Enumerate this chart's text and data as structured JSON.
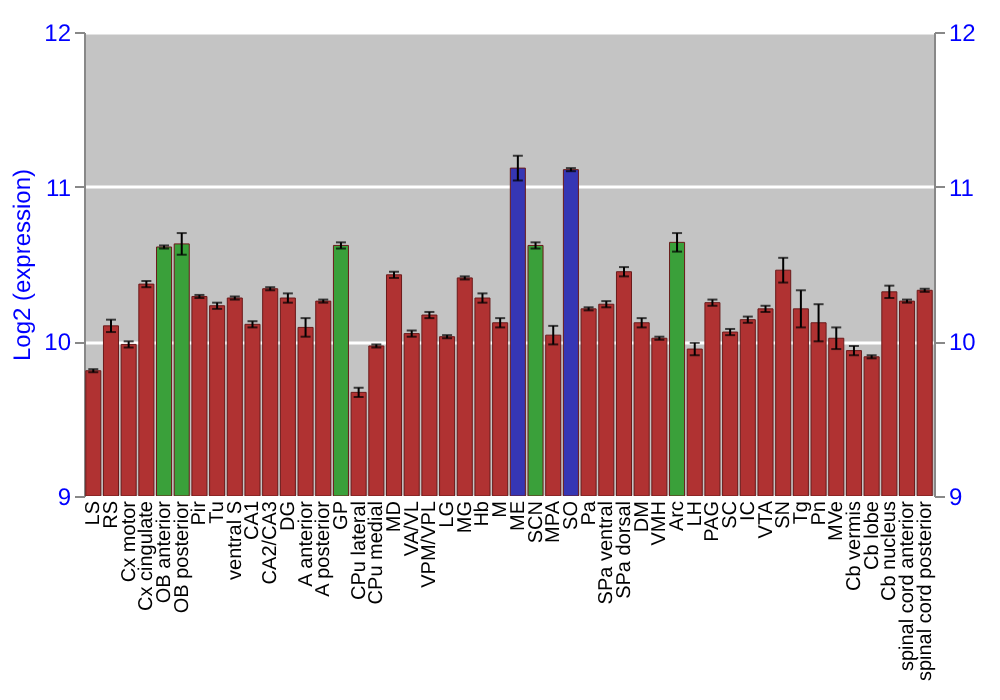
{
  "chart_data": {
    "type": "bar",
    "ylabel": "Log2 (expression)",
    "categories": [
      "LS",
      "RS",
      "Cx motor",
      "Cx cingulate",
      "OB anterior",
      "OB posterior",
      "Pir",
      "Tu",
      "ventral S",
      "CA1",
      "CA2/CA3",
      "DG",
      "A anterior",
      "A posterior",
      "GP",
      "CPu lateral",
      "CPu medial",
      "MD",
      "VA/VL",
      "VPM/VPL",
      "LG",
      "MG",
      "Hb",
      "M",
      "ME",
      "SCN",
      "MPA",
      "SO",
      "Pa",
      "SPa ventral",
      "SPa dorsal",
      "DM",
      "VMH",
      "Arc",
      "LH",
      "PAG",
      "SC",
      "IC",
      "VTA",
      "SN",
      "Tg",
      "Pn",
      "MVe",
      "Cb vermis",
      "Cb lobe",
      "Cb nucleus",
      "spinal cord anterior",
      "spinal cord posterior"
    ],
    "values": [
      9.81,
      10.1,
      9.98,
      10.37,
      10.61,
      10.63,
      10.29,
      10.23,
      10.28,
      10.11,
      10.34,
      10.28,
      10.09,
      10.26,
      10.62,
      9.67,
      9.97,
      10.43,
      10.05,
      10.17,
      10.03,
      10.41,
      10.28,
      10.12,
      11.12,
      10.62,
      10.04,
      11.11,
      10.21,
      10.24,
      10.45,
      10.12,
      10.02,
      10.64,
      9.95,
      10.25,
      10.06,
      10.14,
      10.21,
      10.46,
      10.21,
      10.12,
      10.02,
      9.94,
      9.9,
      10.32,
      10.26,
      10.33
    ],
    "errors": [
      0.01,
      0.04,
      0.02,
      0.02,
      0.01,
      0.07,
      0.01,
      0.02,
      0.01,
      0.02,
      0.01,
      0.03,
      0.06,
      0.01,
      0.02,
      0.03,
      0.01,
      0.02,
      0.02,
      0.02,
      0.01,
      0.01,
      0.03,
      0.03,
      0.08,
      0.02,
      0.06,
      0.01,
      0.01,
      0.02,
      0.03,
      0.03,
      0.01,
      0.06,
      0.04,
      0.02,
      0.02,
      0.02,
      0.02,
      0.08,
      0.12,
      0.12,
      0.07,
      0.03,
      0.01,
      0.04,
      0.01,
      0.01
    ],
    "colors": [
      "#b03232",
      "#b03232",
      "#b03232",
      "#b03232",
      "#3aa03a",
      "#3aa03a",
      "#b03232",
      "#b03232",
      "#b03232",
      "#b03232",
      "#b03232",
      "#b03232",
      "#b03232",
      "#b03232",
      "#3aa03a",
      "#b03232",
      "#b03232",
      "#b03232",
      "#b03232",
      "#b03232",
      "#b03232",
      "#b03232",
      "#b03232",
      "#b03232",
      "#3636b4",
      "#3aa03a",
      "#b03232",
      "#3636b4",
      "#b03232",
      "#b03232",
      "#b03232",
      "#b03232",
      "#b03232",
      "#3aa03a",
      "#b03232",
      "#b03232",
      "#b03232",
      "#b03232",
      "#b03232",
      "#b03232",
      "#b03232",
      "#b03232",
      "#b03232",
      "#b03232",
      "#b03232",
      "#b03232",
      "#b03232",
      "#b03232"
    ],
    "ylim": [
      9,
      12
    ],
    "yticks": [
      9,
      10,
      11,
      12
    ],
    "y2lim": [
      9,
      12
    ],
    "y2ticks": [
      9,
      10,
      11,
      12
    ],
    "grid": "y"
  }
}
